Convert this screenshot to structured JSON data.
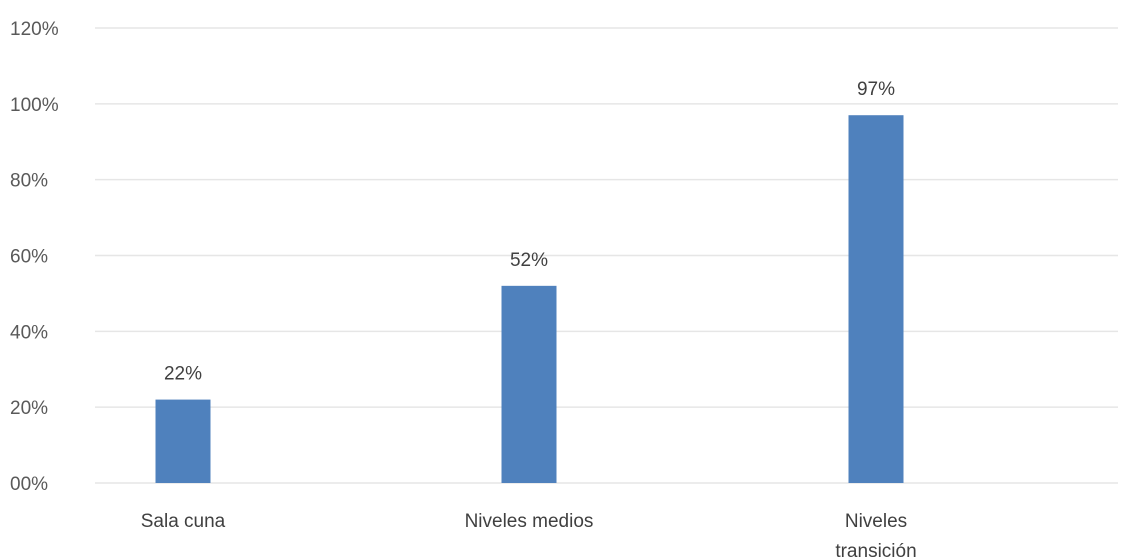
{
  "chart_data": {
    "type": "bar",
    "title": "",
    "xlabel": "",
    "ylabel": "",
    "categories": [
      "Sala cuna",
      "Niveles medios",
      "Niveles transición"
    ],
    "values": [
      22,
      52,
      97
    ],
    "data_labels": [
      "22%",
      "52%",
      "97%"
    ],
    "yticks": [
      "00%",
      "20%",
      "40%",
      "60%",
      "80%",
      "100%",
      "120%"
    ],
    "ylim": [
      0,
      120
    ],
    "grid": true,
    "legend": "none",
    "bar_color": "#4f81bd"
  }
}
